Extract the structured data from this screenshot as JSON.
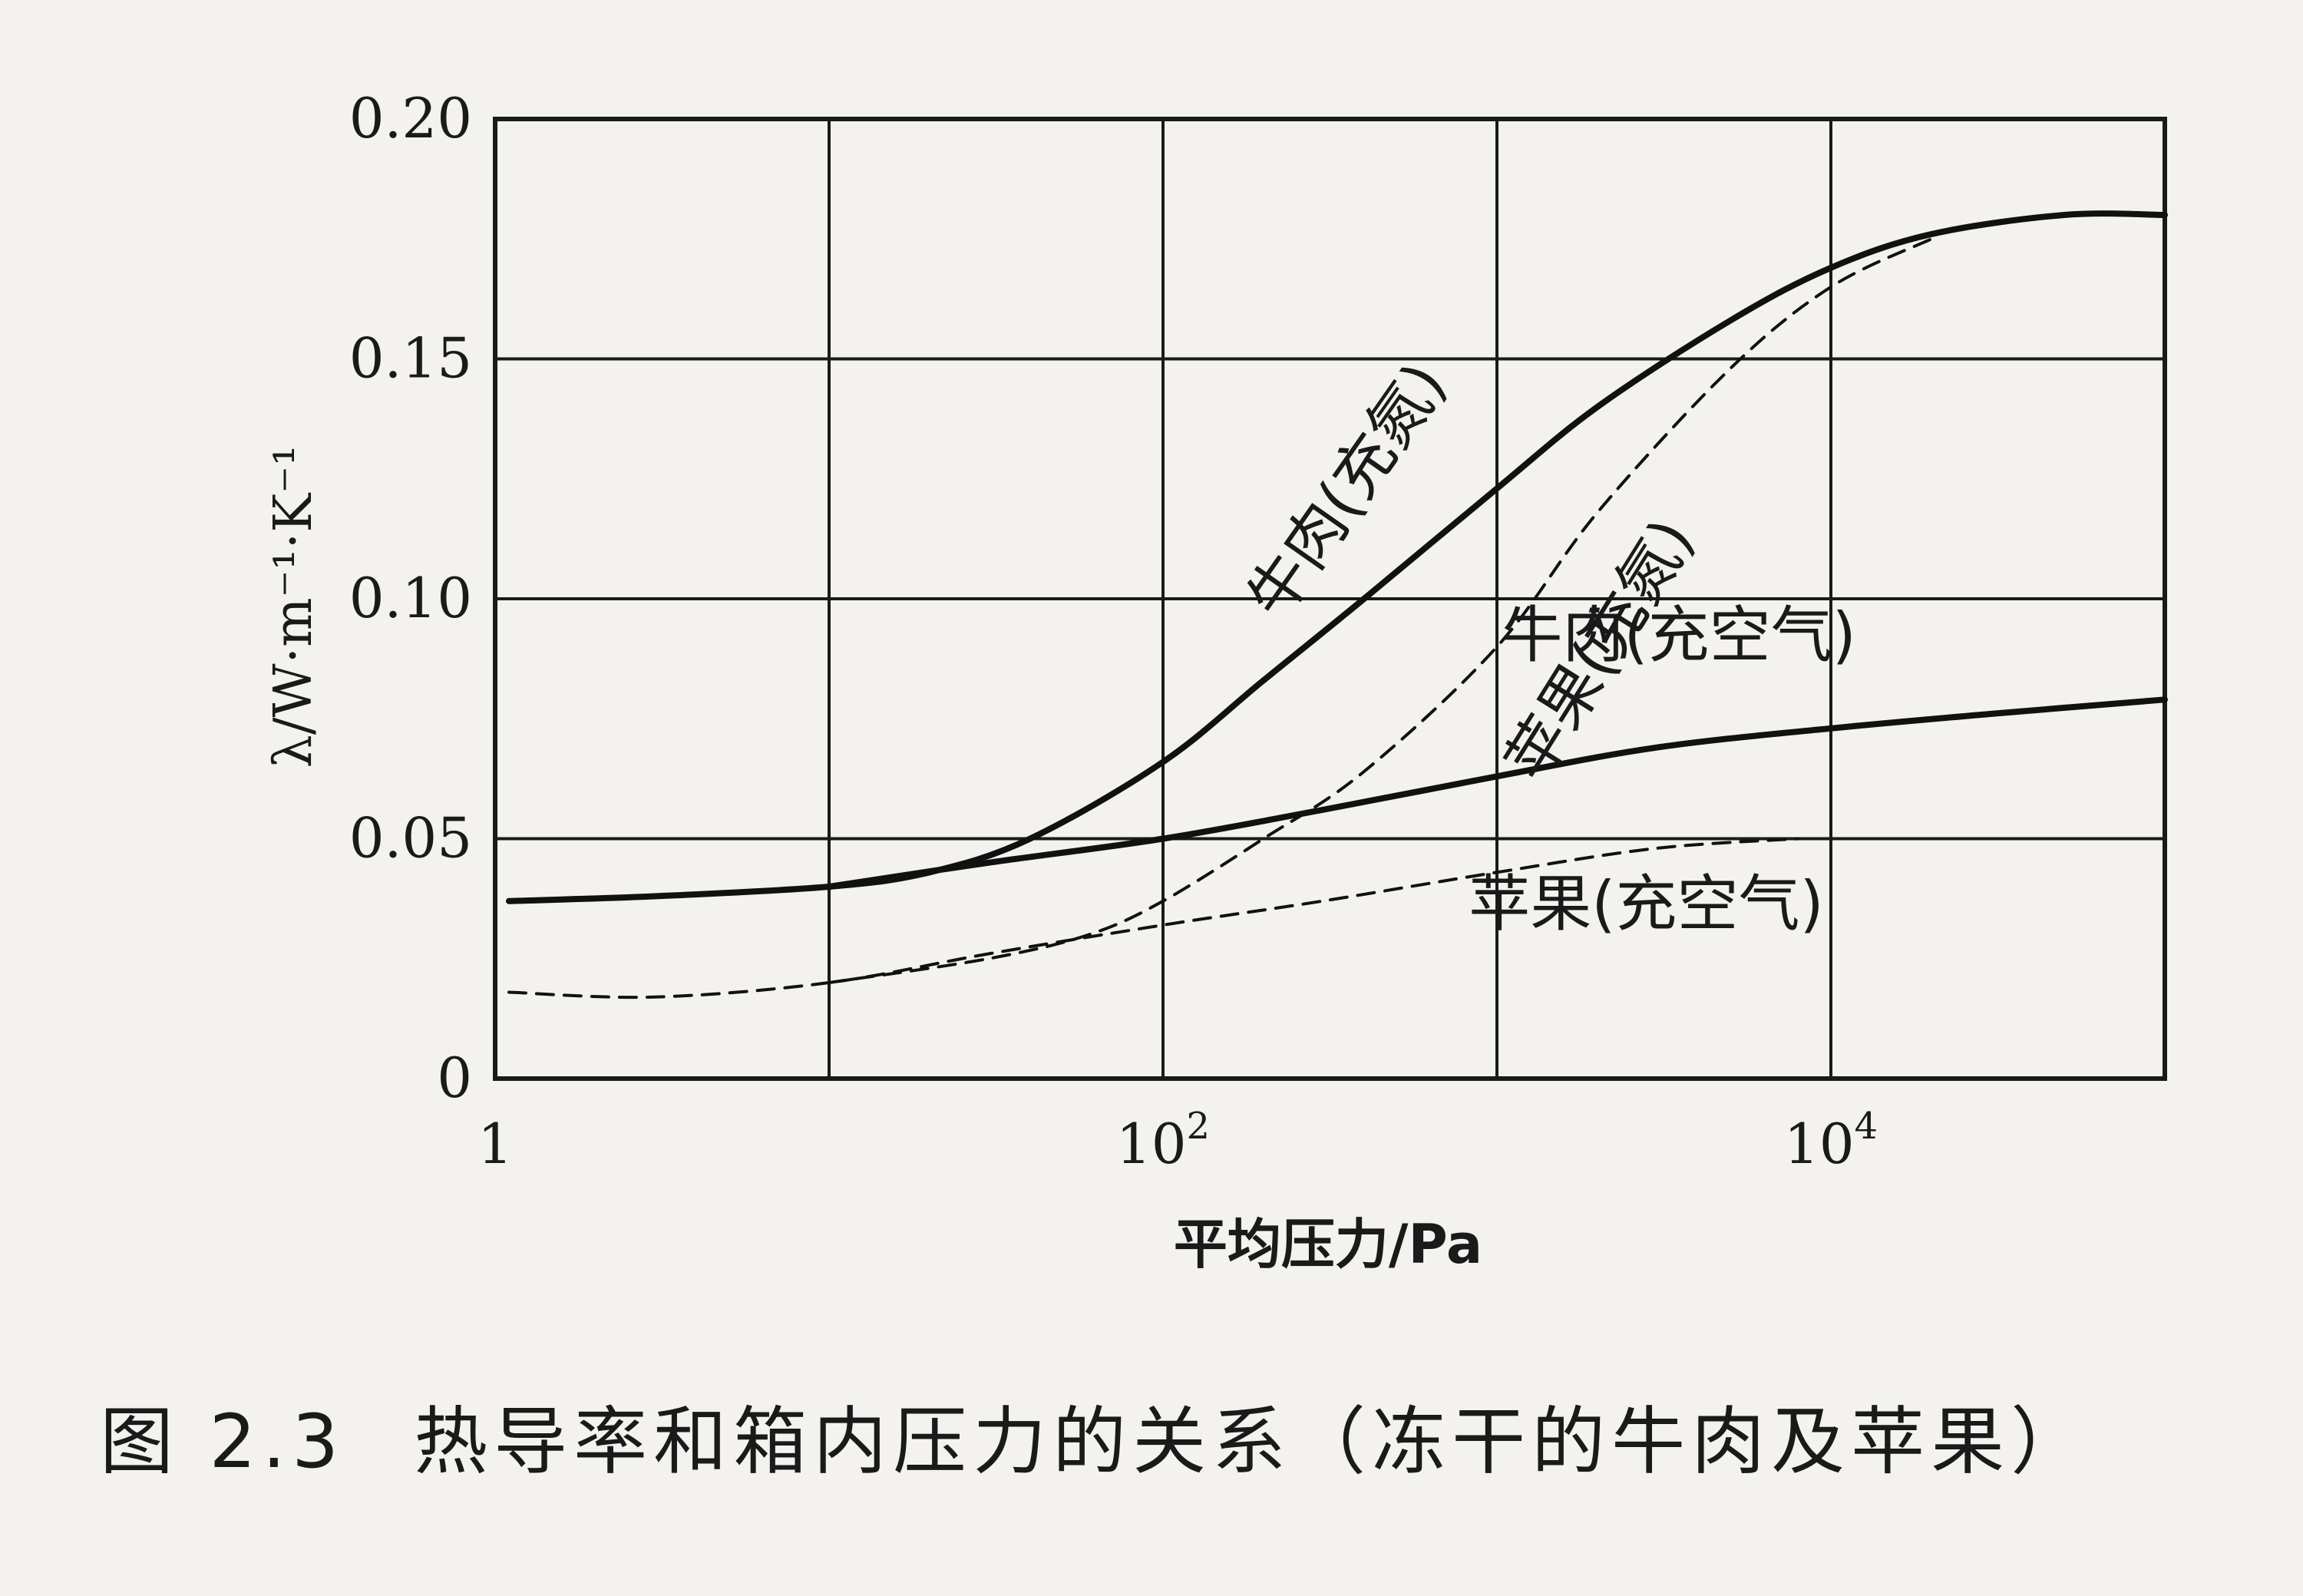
{
  "caption": {
    "figure_number": "图 2.3",
    "text": "热导率和箱内压力的关系（冻干的牛肉及苹果）"
  },
  "chart_data": {
    "type": "line",
    "xlabel": "平均压力/Pa",
    "ylabel": "λ/W·m⁻¹·K⁻¹",
    "x_scale": "log",
    "xlim": [
      1,
      100000
    ],
    "ylim": [
      0,
      0.2
    ],
    "x_ticks": [
      {
        "value": 1,
        "base": "1",
        "exp": ""
      },
      {
        "value": 100,
        "base": "10",
        "exp": "2"
      },
      {
        "value": 10000,
        "base": "10",
        "exp": "4"
      }
    ],
    "y_ticks": [
      {
        "value": 0,
        "label": "0"
      },
      {
        "value": 0.05,
        "label": "0.05"
      },
      {
        "value": 0.1,
        "label": "0.10"
      },
      {
        "value": 0.15,
        "label": "0.15"
      },
      {
        "value": 0.2,
        "label": "0.20"
      }
    ],
    "grid": true,
    "series": [
      {
        "name": "牛肉(充氮)",
        "style": "solid",
        "x": [
          1.1,
          3,
          10,
          20,
          40,
          100,
          200,
          400,
          1000,
          2000,
          5000,
          10000,
          20000,
          50000,
          100000
        ],
        "y": [
          0.037,
          0.038,
          0.04,
          0.043,
          0.05,
          0.066,
          0.083,
          0.1,
          0.123,
          0.14,
          0.158,
          0.169,
          0.176,
          0.18,
          0.18
        ]
      },
      {
        "name": "苹果(充氮)",
        "style": "dashed",
        "x": [
          10,
          30,
          60,
          100,
          200,
          400,
          1000,
          2000,
          5000,
          10000,
          20000
        ],
        "y": [
          0.02,
          0.025,
          0.03,
          0.037,
          0.05,
          0.064,
          0.09,
          0.118,
          0.148,
          0.165,
          0.175
        ]
      },
      {
        "name": "牛肉(充空气)",
        "style": "solid",
        "x": [
          10,
          30,
          100,
          300,
          1000,
          3000,
          10000,
          30000,
          100000
        ],
        "y": [
          0.04,
          0.045,
          0.05,
          0.056,
          0.063,
          0.069,
          0.073,
          0.076,
          0.079
        ]
      },
      {
        "name": "苹果(充空气)",
        "style": "dashed",
        "x": [
          1.1,
          3,
          10,
          30,
          100,
          300,
          1000,
          3000,
          8000
        ],
        "y": [
          0.018,
          0.017,
          0.02,
          0.026,
          0.032,
          0.037,
          0.043,
          0.048,
          0.05
        ]
      }
    ],
    "annotations": [
      {
        "text": "牛肉(充氮)",
        "x": 400,
        "y": 0.12,
        "angle": -55
      },
      {
        "text": "苹果(充氮)",
        "x": 2300,
        "y": 0.087,
        "angle": -58
      },
      {
        "text": "牛肉(充空气)",
        "x": 3500,
        "y": 0.088,
        "angle": 0
      },
      {
        "text": "苹果(充空气)",
        "x": 2800,
        "y": 0.032,
        "angle": 0
      }
    ]
  }
}
